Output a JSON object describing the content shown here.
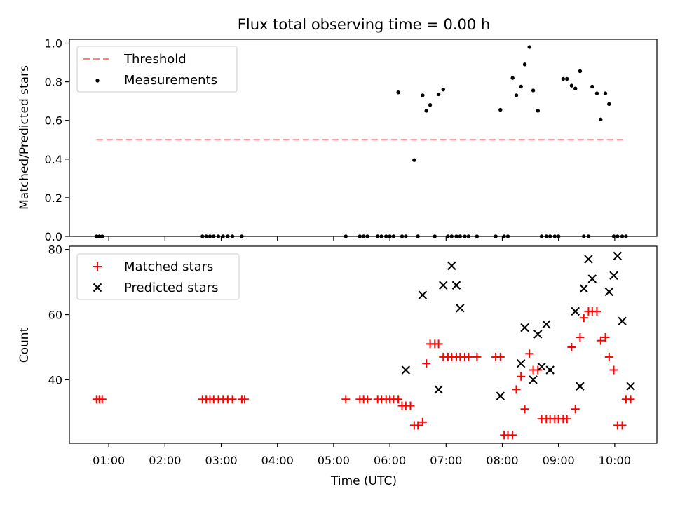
{
  "title": "Flux total observing time = 0.00 h",
  "x_axis": {
    "label": "Time (UTC)",
    "ticks": [
      "01:00",
      "02:00",
      "03:00",
      "04:00",
      "05:00",
      "06:00",
      "07:00",
      "08:00",
      "09:00",
      "10:00"
    ]
  },
  "colors": {
    "threshold": "#ff7f7f",
    "measurement": "#000000",
    "matched": "#ff0000",
    "predicted": "#000000"
  },
  "chart_data": [
    {
      "type": "scatter",
      "ylabel": "Matched/Predicted stars",
      "xlim_hours": [
        0.3,
        10.75
      ],
      "ylim": [
        0,
        1.02
      ],
      "yticks": [
        "0.0",
        "0.2",
        "0.4",
        "0.6",
        "0.8",
        "1.0"
      ],
      "ytick_values": [
        0,
        0.2,
        0.4,
        0.6,
        0.8,
        1.0
      ],
      "legend_position": "top-left",
      "threshold": {
        "name": "Threshold",
        "value": 0.5,
        "x_range": [
          "00:47",
          "10:13"
        ]
      },
      "series": [
        {
          "name": "Measurements",
          "x": [
            "00:47",
            "00:50",
            "00:53",
            "02:40",
            "02:44",
            "02:48",
            "02:52",
            "02:57",
            "03:02",
            "03:07",
            "03:12",
            "03:22",
            "05:13",
            "05:28",
            "05:32",
            "05:36",
            "05:47",
            "05:51",
            "05:56",
            "06:00",
            "06:04",
            "06:09",
            "06:13",
            "06:17",
            "06:26",
            "06:30",
            "06:35",
            "06:39",
            "06:43",
            "06:48",
            "06:52",
            "06:57",
            "07:02",
            "07:06",
            "07:11",
            "07:15",
            "07:20",
            "07:24",
            "07:33",
            "07:53",
            "07:58",
            "08:02",
            "08:06",
            "08:11",
            "08:15",
            "08:20",
            "08:24",
            "08:29",
            "08:33",
            "08:38",
            "08:42",
            "08:47",
            "08:51",
            "08:56",
            "09:00",
            "09:05",
            "09:09",
            "09:14",
            "09:18",
            "09:23",
            "09:27",
            "09:32",
            "09:36",
            "09:41",
            "09:45",
            "09:50",
            "09:54",
            "09:59",
            "10:03",
            "10:08",
            "10:12"
          ],
          "y": [
            0,
            0,
            0,
            0,
            0,
            0,
            0,
            0,
            0,
            0,
            0,
            0,
            0,
            0,
            0,
            0,
            0,
            0,
            0,
            0,
            0,
            0.745,
            0,
            0,
            0.395,
            0,
            0.73,
            0.65,
            0.68,
            0,
            0.735,
            0.76,
            0,
            0,
            0,
            0,
            0,
            0,
            0,
            0,
            0.655,
            0,
            0,
            0.82,
            0.73,
            0.775,
            0.89,
            0.98,
            0.755,
            0.65,
            0,
            0,
            0,
            0,
            0,
            0.815,
            0.815,
            0.78,
            0.765,
            0.855,
            0,
            0,
            0.775,
            0.74,
            0.605,
            0.74,
            0.685,
            0,
            0,
            0,
            0
          ]
        }
      ]
    },
    {
      "type": "scatter",
      "ylabel": "Count",
      "xlim_hours": [
        0.3,
        10.75
      ],
      "ylim": [
        20.5,
        81
      ],
      "yticks": [
        "40",
        "60",
        "80"
      ],
      "ytick_values": [
        40,
        60,
        80
      ],
      "legend_position": "top-left",
      "series": [
        {
          "name": "Matched stars",
          "marker": "+",
          "x": [
            "00:47",
            "00:50",
            "00:53",
            "02:40",
            "02:44",
            "02:48",
            "02:52",
            "02:57",
            "03:02",
            "03:07",
            "03:12",
            "03:22",
            "03:25",
            "05:13",
            "05:28",
            "05:32",
            "05:36",
            "05:47",
            "05:51",
            "05:56",
            "06:00",
            "06:04",
            "06:09",
            "06:13",
            "06:17",
            "06:22",
            "06:26",
            "06:30",
            "06:35",
            "06:39",
            "06:43",
            "06:48",
            "06:52",
            "06:57",
            "07:02",
            "07:06",
            "07:11",
            "07:15",
            "07:20",
            "07:24",
            "07:33",
            "07:53",
            "07:58",
            "08:02",
            "08:06",
            "08:11",
            "08:15",
            "08:20",
            "08:24",
            "08:29",
            "08:33",
            "08:38",
            "08:42",
            "08:47",
            "08:51",
            "08:56",
            "09:00",
            "09:05",
            "09:09",
            "09:14",
            "09:18",
            "09:23",
            "09:27",
            "09:32",
            "09:36",
            "09:41",
            "09:45",
            "09:50",
            "09:54",
            "09:59",
            "10:03",
            "10:08",
            "10:12",
            "10:17"
          ],
          "y": [
            34,
            34,
            34,
            34,
            34,
            34,
            34,
            34,
            34,
            34,
            34,
            34,
            34,
            34,
            34,
            34,
            34,
            34,
            34,
            34,
            34,
            34,
            34,
            32,
            32,
            32,
            26,
            26,
            27,
            45,
            51,
            51,
            51,
            47,
            47,
            47,
            47,
            47,
            47,
            47,
            47,
            47,
            47,
            23,
            23,
            23,
            37,
            41,
            31,
            48,
            43,
            43,
            28,
            28,
            28,
            28,
            28,
            28,
            28,
            50,
            31,
            53,
            59,
            61,
            61,
            61,
            52,
            53,
            47,
            43,
            26,
            26,
            34,
            34
          ]
        },
        {
          "name": "Predicted stars",
          "marker": "x",
          "x": [
            "06:17",
            "06:35",
            "06:52",
            "06:57",
            "07:06",
            "07:11",
            "07:15",
            "07:58",
            "08:20",
            "08:24",
            "08:33",
            "08:38",
            "08:42",
            "08:47",
            "08:51",
            "09:18",
            "09:23",
            "09:27",
            "09:32",
            "09:36",
            "09:54",
            "09:59",
            "10:03",
            "10:08",
            "10:17"
          ],
          "y": [
            43,
            66,
            37,
            69,
            75,
            69,
            62,
            35,
            45,
            56,
            40,
            54,
            44,
            57,
            43,
            61,
            38,
            68,
            77,
            71,
            67,
            72,
            78,
            58,
            38
          ]
        }
      ]
    }
  ]
}
